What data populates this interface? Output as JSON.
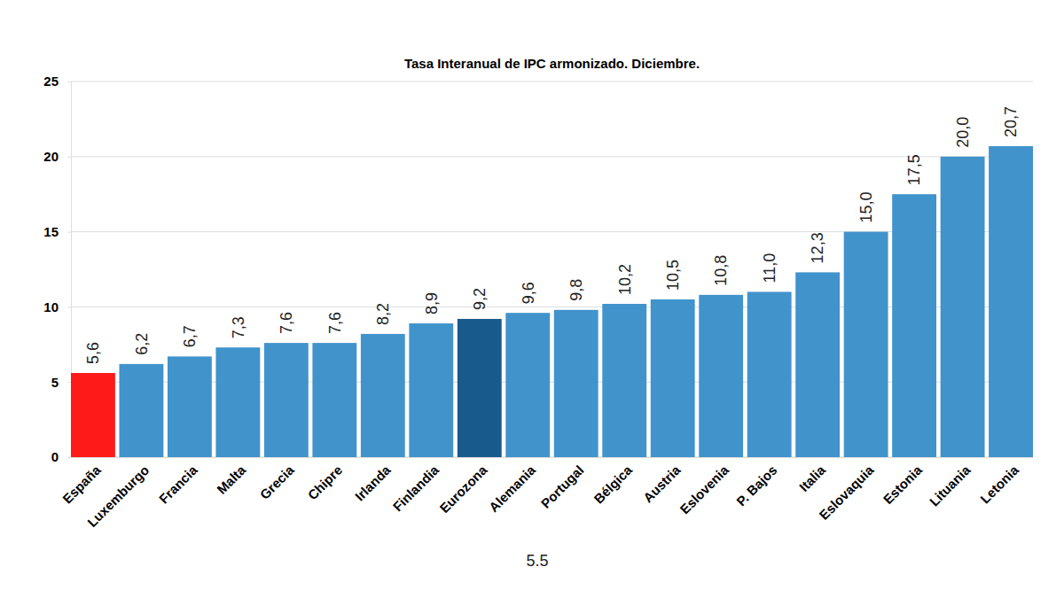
{
  "chart_data": {
    "type": "bar",
    "title": "Tasa Interanual de IPC armonizado. Diciembre.",
    "categories": [
      "España",
      "Luxemburgo",
      "Francia",
      "Malta",
      "Grecia",
      "Chipre",
      "Irlanda",
      "Finlandia",
      "Eurozona",
      "Alemania",
      "Portugal",
      "Bélgica",
      "Austria",
      "Eslovenia",
      "P. Bajos",
      "Italia",
      "Eslovaquia",
      "Estonia",
      "Lituania",
      "Letonia"
    ],
    "values": [
      5.6,
      6.2,
      6.7,
      7.3,
      7.6,
      7.6,
      8.2,
      8.9,
      9.2,
      9.6,
      9.8,
      10.2,
      10.5,
      10.8,
      11.0,
      12.3,
      15.0,
      17.5,
      20.0,
      20.7
    ],
    "value_labels": [
      "5,6",
      "6,2",
      "6,7",
      "7,3",
      "7,6",
      "7,6",
      "8,2",
      "8,9",
      "9,2",
      "9,6",
      "9,8",
      "10,2",
      "10,5",
      "10,8",
      "11,0",
      "12,3",
      "15,0",
      "17,5",
      "20,0",
      "20,7"
    ],
    "colors": [
      "#ff1a1a",
      "#4193cc",
      "#4193cc",
      "#4193cc",
      "#4193cc",
      "#4193cc",
      "#4193cc",
      "#4193cc",
      "#185a8c",
      "#4193cc",
      "#4193cc",
      "#4193cc",
      "#4193cc",
      "#4193cc",
      "#4193cc",
      "#4193cc",
      "#4193cc",
      "#4193cc",
      "#4193cc",
      "#4193cc"
    ],
    "ylim": [
      0,
      25
    ],
    "yticks": [
      0,
      5,
      10,
      15,
      20,
      25
    ],
    "grid": true,
    "data_labels": true,
    "annotation": "5.5"
  }
}
